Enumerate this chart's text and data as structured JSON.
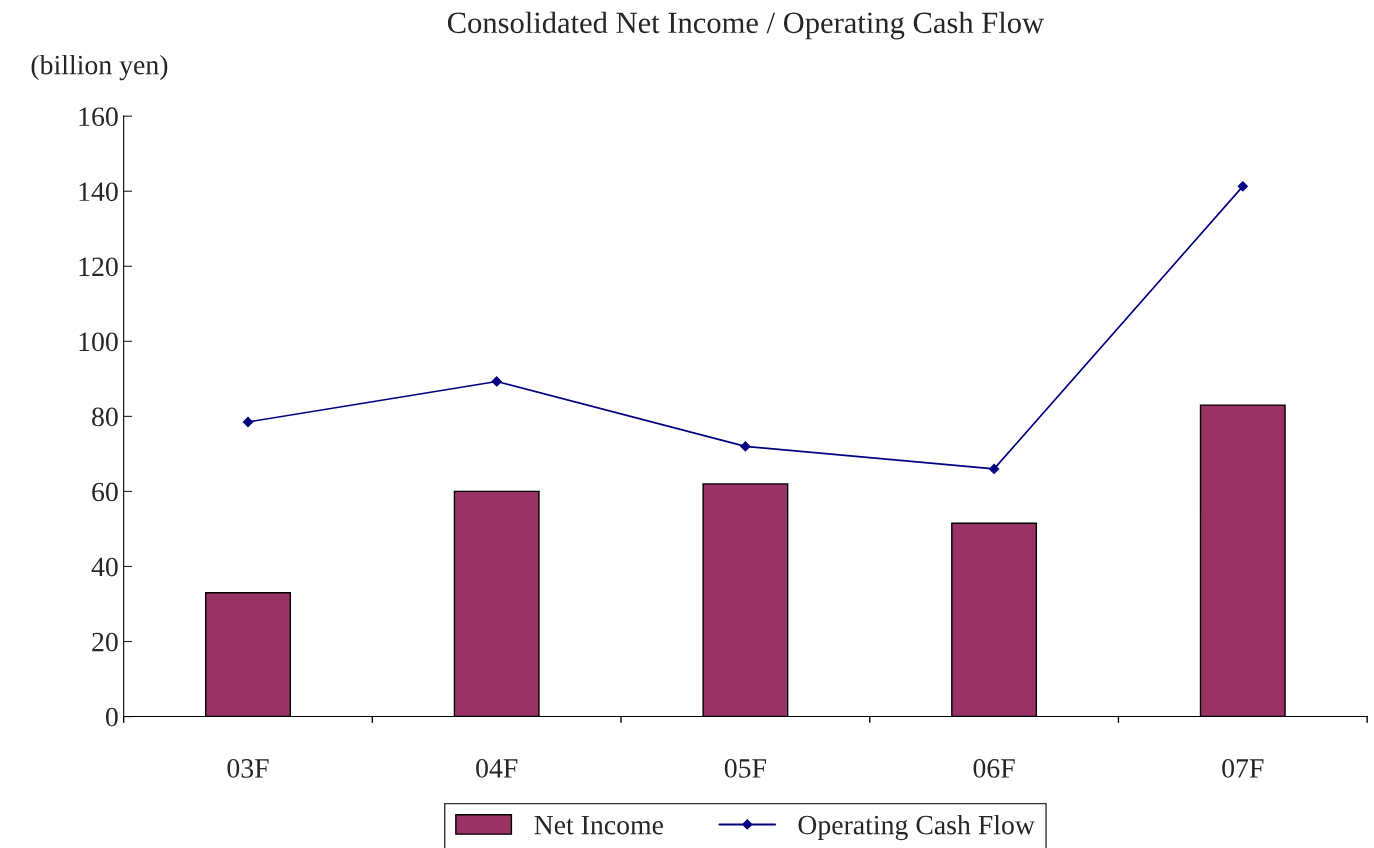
{
  "chart_data": {
    "type": "bar",
    "title": "Consolidated Net Income / Operating Cash Flow",
    "ylabel": "(billion yen)",
    "categories": [
      "03F",
      "04F",
      "05F",
      "06F",
      "07F"
    ],
    "series": [
      {
        "name": "Net Income",
        "color": "#993366",
        "values": [
          33,
          60,
          62,
          51.5,
          83
        ]
      },
      {
        "name": "Operating Cash Flow",
        "type": "line",
        "color": "#000080",
        "marker": "diamond",
        "line_style": "solid",
        "values": [
          78.5,
          89.3,
          72,
          66,
          141.3
        ]
      }
    ],
    "ylim": [
      0,
      160
    ],
    "yticks": [
      0,
      20,
      40,
      60,
      80,
      100,
      120,
      140,
      160
    ],
    "grid": false,
    "legend": "bottom"
  }
}
